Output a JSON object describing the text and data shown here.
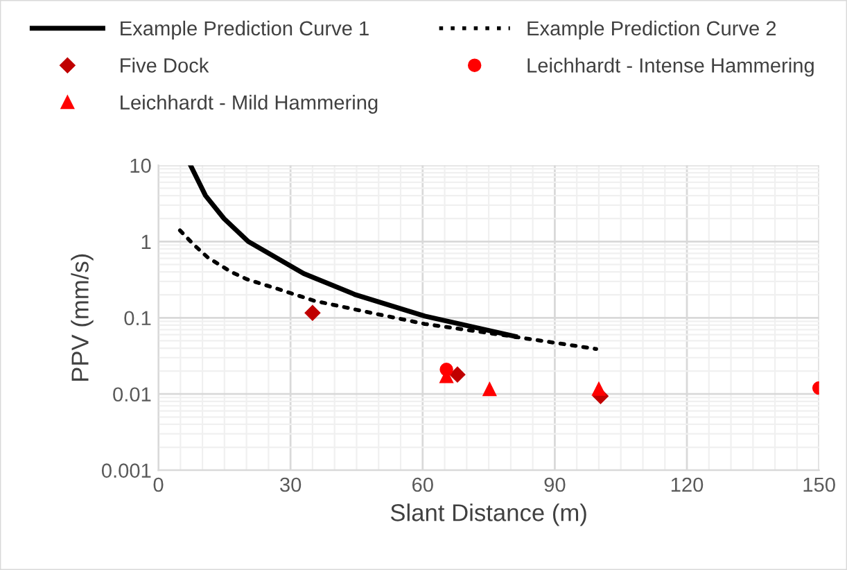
{
  "chart_data": {
    "type": "scatter",
    "xlabel": "Slant Distance (m)",
    "ylabel": "PPV (mm/s)",
    "log": "y",
    "grid": true,
    "legend": "top",
    "xlim": [
      0,
      150
    ],
    "xticks": [
      0,
      30,
      60,
      90,
      120,
      150
    ],
    "ylim": [
      0.001,
      10
    ],
    "yticks": [
      0.001,
      0.01,
      0.1,
      1,
      10
    ],
    "series": [
      {
        "name": "Example Prediction Curve 1",
        "type": "line",
        "line_style": "solid",
        "marker": "none",
        "color": "#000000",
        "x": [
          7.3,
          10.7,
          14.9,
          20.4,
          33,
          44.8,
          60.5,
          81
        ],
        "values": [
          10,
          4.0,
          2.0,
          1.0,
          0.38,
          0.2,
          0.105,
          0.057
        ]
      },
      {
        "name": "Example Prediction Curve 2",
        "type": "line",
        "line_style": "dotted",
        "marker": "none",
        "color": "#000000",
        "x": [
          4.9,
          8.1,
          11.2,
          16.5,
          20.1,
          27,
          35.4,
          48,
          60.5,
          79.4,
          99.4
        ],
        "values": [
          1.4,
          0.9,
          0.62,
          0.4,
          0.32,
          0.24,
          0.167,
          0.117,
          0.083,
          0.058,
          0.039
        ]
      },
      {
        "name": "Five Dock",
        "marker": "diamond",
        "color": "#c00000",
        "x": [
          35,
          67.9,
          100.4
        ],
        "values": [
          0.116,
          0.018,
          0.0094
        ]
      },
      {
        "name": "Leichhardt - Intense Hammering",
        "marker": "circle",
        "color": "#ff0000",
        "x": [
          65.4,
          100,
          150
        ],
        "values": [
          0.021,
          null,
          0.012
        ]
      },
      {
        "name": "Leichhardt - Mild Hammering",
        "marker": "triangle",
        "color": "#ff0000",
        "x": [
          65.4,
          75.2,
          100
        ],
        "values": [
          0.017,
          0.0115,
          0.0116
        ]
      }
    ]
  }
}
